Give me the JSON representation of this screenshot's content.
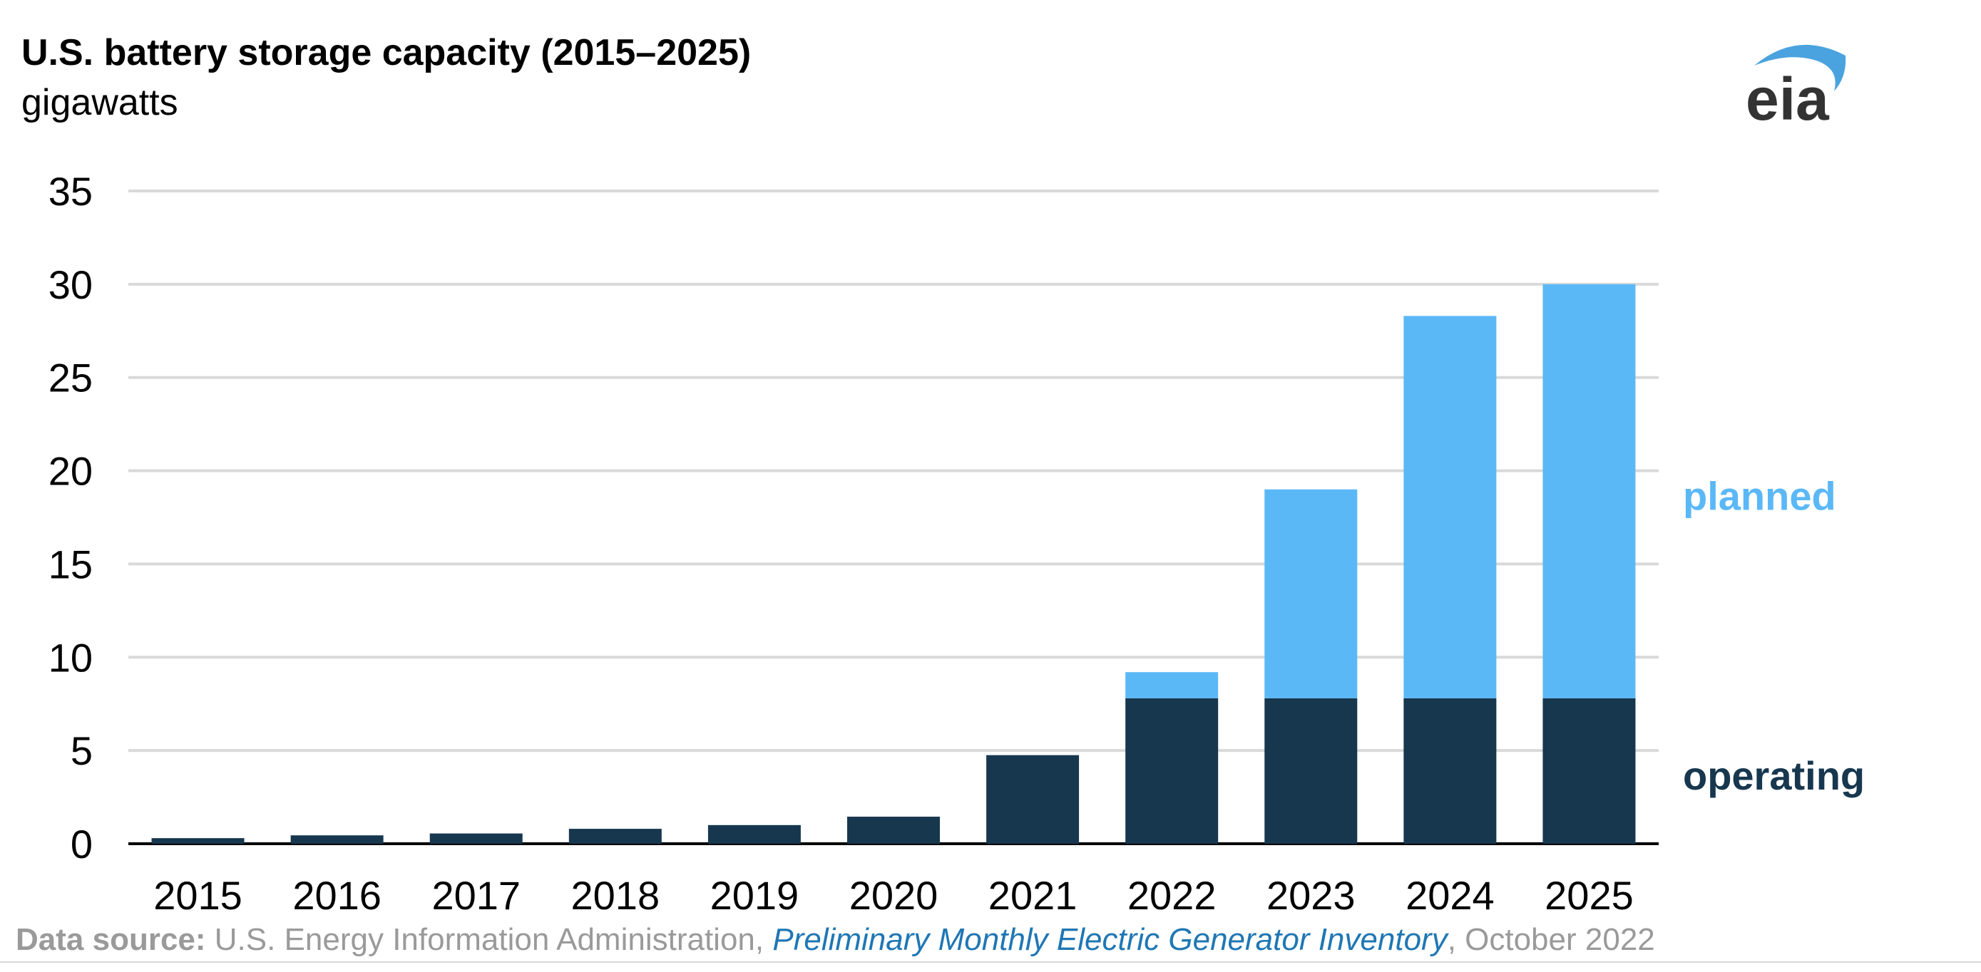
{
  "header": {
    "title": "U.S. battery storage capacity (2015–2025)",
    "subtitle": "gigawatts"
  },
  "logo": {
    "text": "eia",
    "accent_color": "#4aa3df"
  },
  "chart_data": {
    "type": "bar",
    "stacked": true,
    "categories": [
      "2015",
      "2016",
      "2017",
      "2018",
      "2019",
      "2020",
      "2021",
      "2022",
      "2023",
      "2024",
      "2025"
    ],
    "series": [
      {
        "name": "operating",
        "color": "#17374f",
        "values": [
          0.3,
          0.45,
          0.55,
          0.8,
          1.0,
          1.45,
          4.75,
          7.8,
          7.8,
          7.8,
          7.8
        ]
      },
      {
        "name": "planned",
        "color": "#5bb8f7",
        "values": [
          0,
          0,
          0,
          0,
          0,
          0,
          0,
          1.4,
          11.2,
          20.5,
          22.2
        ]
      }
    ],
    "yticks": [
      "0",
      "5",
      "10",
      "15",
      "20",
      "25",
      "30",
      "35"
    ],
    "ylim": [
      0,
      35
    ],
    "grid": true,
    "legend": "inline-right"
  },
  "footer": {
    "source_label": "Data source:",
    "source_text": " U.S. Energy Information Administration, ",
    "source_link": "Preliminary Monthly Electric Generator Inventory",
    "source_tail": ", October 2022"
  }
}
